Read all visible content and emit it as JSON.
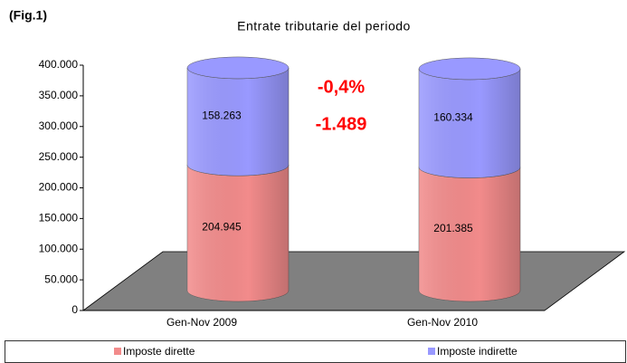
{
  "chart_data": {
    "type": "bar3d-cylinder-stacked",
    "label": "(Fig.1)",
    "title": "Entrate tributarie del periodo",
    "categories": [
      "Gen-Nov 2009",
      "Gen-Nov 2010"
    ],
    "series": [
      {
        "name": "Imposte dirette",
        "color": "#f28b8b",
        "values": [
          204945,
          201385
        ],
        "value_labels": [
          "204.945",
          "201.385"
        ]
      },
      {
        "name": "Imposte indirette",
        "color": "#9999ff",
        "values": [
          158263,
          160334
        ],
        "value_labels": [
          "158.263",
          "160.334"
        ]
      }
    ],
    "annotations": [
      "-0,4%",
      "-1.489"
    ],
    "ylim": [
      0,
      400000
    ],
    "yticks": [
      0,
      {
        "value": 50000,
        "label": "50.000"
      },
      {
        "value": 100000,
        "label": "100.000"
      },
      {
        "value": 150000,
        "label": "150.000"
      },
      {
        "value": 200000,
        "label": "200.000"
      },
      {
        "value": 250000,
        "label": "250.000"
      },
      {
        "value": 300000,
        "label": "300.000"
      },
      {
        "value": 350000,
        "label": "350.000"
      },
      {
        "value": 400000,
        "label": "400.000"
      }
    ],
    "legend": "bottom"
  }
}
